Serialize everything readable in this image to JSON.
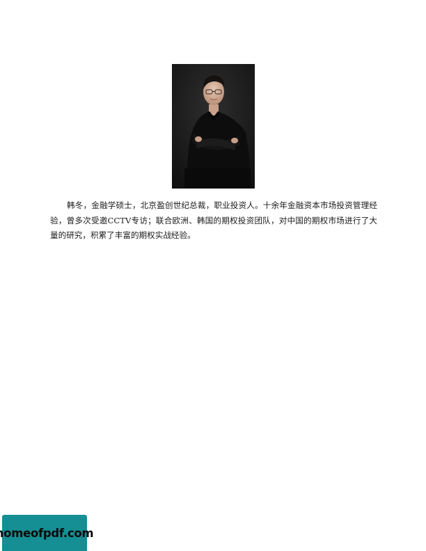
{
  "document": {
    "bio_text": "韩冬，金融学硕士，北京盈创世纪总裁，职业投资人。十余年金融资本市场投资管理经验，曾多次受邀CCTV专访；联合欧洲、韩国的期权投资团队，对中国的期权市场进行了大量的研究，积累了丰富的期权实战经验。"
  },
  "watermark": {
    "text": "homeofpdf.com",
    "background_color": "#158f94"
  }
}
